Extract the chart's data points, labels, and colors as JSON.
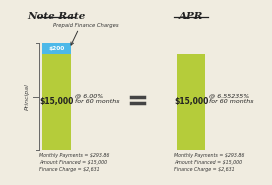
{
  "title_left": "Note Rate",
  "title_right": "APR",
  "bar_green": "#b5cc3a",
  "bar_blue": "#4db8e8",
  "bg_color": "#f0ece0",
  "left_label_green": "$15,000",
  "left_label_blue": "$200",
  "right_label_green": "$15,000",
  "left_rate": "@ 6.00%\nfor 60 months",
  "right_rate": "@ 6.55235%\nfor 60 months",
  "prepaid_label": "Prepaid Finance Charges",
  "bottom_left": "Monthly Payments = $293.86\nAmount Financed = $15,000\nFinance Charge = $2,631",
  "bottom_right": "Monthly Payments = $293.86\nAmount Financed = $15,000\nFinance Charge = $2,631",
  "principal_label": "Principal"
}
